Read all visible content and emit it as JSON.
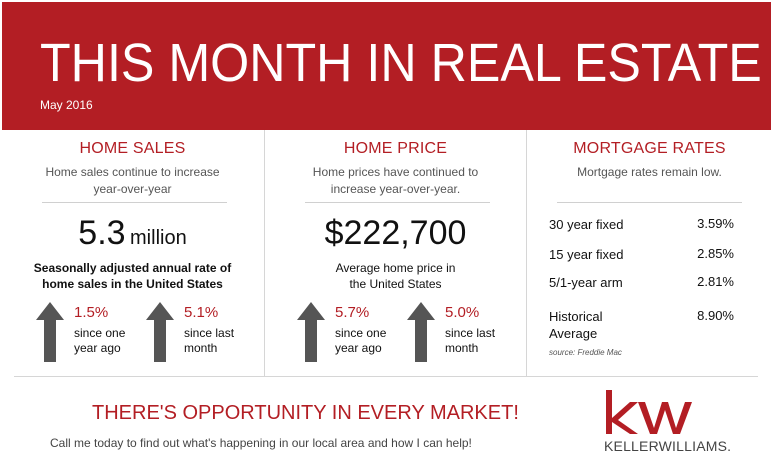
{
  "banner": {
    "title": "THIS MONTH IN REAL ESTATE",
    "date": "May 2016",
    "color": "#b31e24"
  },
  "home_sales": {
    "heading": "HOME SALES",
    "subtitle_line1": "Home sales continue to increase",
    "subtitle_line2": "year-over-year",
    "value": "5.3",
    "unit": "million",
    "desc_line1": "Seasonally adjusted annual rate of",
    "desc_line2": "home sales in the United States",
    "stats": [
      {
        "pct": "1.5%",
        "label_line1": "since one",
        "label_line2": "year ago",
        "icon": "up-arrow-icon"
      },
      {
        "pct": "5.1%",
        "label_line1": "since last",
        "label_line2": "month",
        "icon": "up-arrow-icon"
      }
    ]
  },
  "home_price": {
    "heading": "HOME PRICE",
    "subtitle_line1": "Home prices have continued to",
    "subtitle_line2": "increase year-over-year.",
    "value": "$222,700",
    "desc_line1": "Average home price in",
    "desc_line2": "the United States",
    "stats": [
      {
        "pct": "5.7%",
        "label_line1": "since one",
        "label_line2": "year ago",
        "icon": "up-arrow-icon"
      },
      {
        "pct": "5.0%",
        "label_line1": "since last",
        "label_line2": "month",
        "icon": "up-arrow-icon"
      }
    ]
  },
  "mortgage_rates": {
    "heading": "MORTGAGE RATES",
    "subtitle": "Mortgage rates remain low.",
    "rates": [
      {
        "label": "30 year fixed",
        "value": "3.59%"
      },
      {
        "label": "15 year fixed",
        "value": "2.85%"
      },
      {
        "label": "5/1-year arm",
        "value": "2.81%"
      }
    ],
    "historical_line1": "Historical",
    "historical_line2": "Average",
    "historical_value": "8.90%",
    "source": "source: Freddie Mac"
  },
  "footer": {
    "title": "THERE'S OPPORTUNITY IN EVERY MARKET!",
    "subtitle": "Call me today to find out what's happening in our local area and how I can help!",
    "logo_text": "KELLERWILLIAMS.",
    "logo_icon": "kw-logo-icon"
  }
}
